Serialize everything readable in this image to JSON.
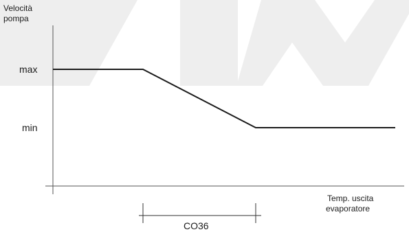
{
  "y_axis_label": [
    "Velocità",
    "pompa"
  ],
  "x_axis_label": [
    "Temp. uscita",
    "evaporatore"
  ],
  "levels": {
    "max": "max",
    "min": "min"
  },
  "parameter_label": "CO36",
  "watermark_color": "#eeeeee",
  "line_color": "#1a1a1a"
}
